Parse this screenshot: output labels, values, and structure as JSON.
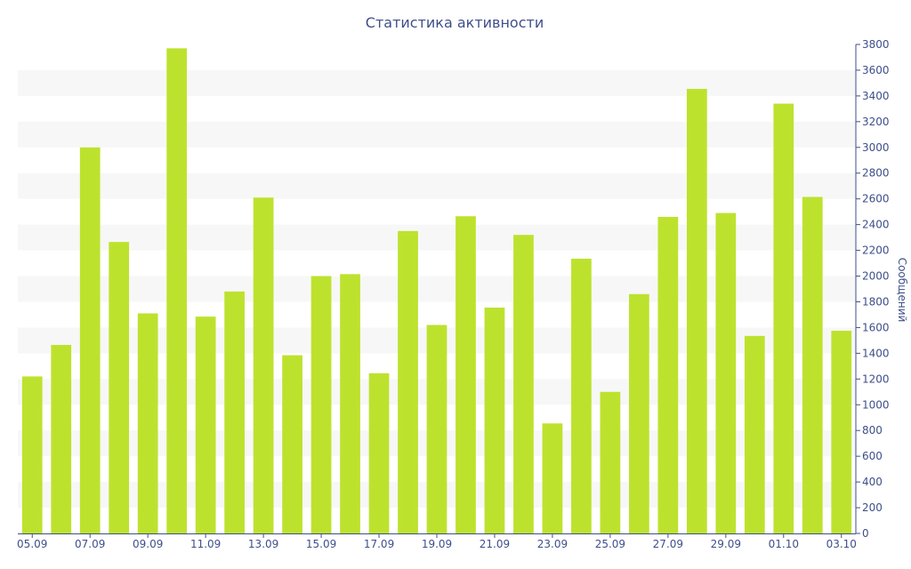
{
  "colors": {
    "bar": "#bde22e",
    "band": "#f7f7f7",
    "axis": "#3e4f8a",
    "background": "#ffffff"
  },
  "chart_data": {
    "type": "bar",
    "title": "Статистика активности",
    "xlabel": "",
    "ylabel": "Сообщений",
    "y_axis_position": "right",
    "grid": "alternating horizontal bands",
    "legend": "none",
    "ylim": [
      0,
      3800
    ],
    "y_ticks": [
      0,
      200,
      400,
      600,
      800,
      1000,
      1200,
      1400,
      1600,
      1800,
      2000,
      2200,
      2400,
      2600,
      2800,
      3000,
      3200,
      3400,
      3600,
      3800
    ],
    "categories": [
      "05.09",
      "06.09",
      "07.09",
      "08.09",
      "09.09",
      "10.09",
      "11.09",
      "12.09",
      "13.09",
      "14.09",
      "15.09",
      "16.09",
      "17.09",
      "18.09",
      "19.09",
      "20.09",
      "21.09",
      "22.09",
      "23.09",
      "24.09",
      "25.09",
      "26.09",
      "27.09",
      "28.09",
      "29.09",
      "30.09",
      "01.10",
      "02.10",
      "03.10"
    ],
    "x_tick_labels": [
      "05.09",
      "07.09",
      "09.09",
      "11.09",
      "13.09",
      "15.09",
      "17.09",
      "19.09",
      "21.09",
      "23.09",
      "25.09",
      "27.09",
      "29.09",
      "01.10",
      "03.10"
    ],
    "values": [
      1220,
      1465,
      3000,
      2265,
      1710,
      3770,
      1685,
      1880,
      2610,
      1385,
      2000,
      2015,
      1245,
      2350,
      1620,
      2465,
      1755,
      2320,
      855,
      2135,
      1100,
      1860,
      2460,
      3455,
      2490,
      1535,
      3340,
      2615,
      1575
    ]
  }
}
